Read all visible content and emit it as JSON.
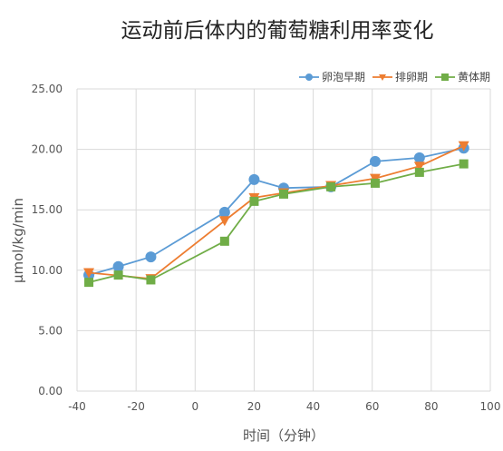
{
  "chart_data": {
    "type": "line",
    "title": "运动前后体内的葡萄糖利用率变化",
    "xlabel": "时间（分钟）",
    "ylabel": "μmol/kg/min",
    "xlim": [
      -40,
      100
    ],
    "ylim": [
      0,
      25
    ],
    "x_ticks": [
      "-40",
      "-20",
      "0",
      "20",
      "40",
      "60",
      "80",
      "100"
    ],
    "y_ticks": [
      "0.00",
      "5.00",
      "10.00",
      "15.00",
      "20.00",
      "25.00"
    ],
    "grid": true,
    "legend_position": "top-right",
    "series": [
      {
        "name": "卵泡早期",
        "color": "#5b9bd5",
        "marker": "circle",
        "x": [
          -36,
          -26,
          -15,
          10,
          20,
          30,
          46,
          61,
          76,
          91
        ],
        "y": [
          9.6,
          10.3,
          11.1,
          14.8,
          17.5,
          16.8,
          16.9,
          19.0,
          19.3,
          20.1
        ]
      },
      {
        "name": "排卵期",
        "color": "#ed7d31",
        "marker": "triangle",
        "x": [
          -36,
          -15,
          10,
          20,
          30,
          46,
          61,
          76,
          91
        ],
        "y": [
          9.8,
          9.3,
          14.1,
          16.0,
          16.4,
          17.0,
          17.6,
          18.6,
          20.3
        ]
      },
      {
        "name": "黄体期",
        "color": "#70ad47",
        "marker": "square",
        "x": [
          -36,
          -26,
          -15,
          10,
          20,
          30,
          46,
          61,
          76,
          91
        ],
        "y": [
          9.0,
          9.6,
          9.2,
          12.4,
          15.7,
          16.3,
          16.9,
          17.2,
          18.1,
          18.8
        ]
      }
    ]
  }
}
